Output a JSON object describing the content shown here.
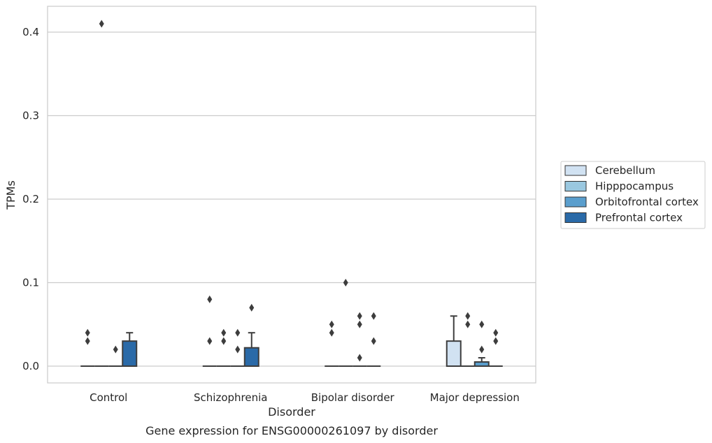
{
  "caption": "Gene expression for ENSG00000261097 by disorder",
  "chart_data": {
    "type": "box",
    "xlabel": "Disorder",
    "ylabel": "TPMs",
    "ylim": [
      -0.02,
      0.43
    ],
    "yticks": [
      "0.0",
      "0.1",
      "0.2",
      "0.3",
      "0.4"
    ],
    "grid": "horizontal",
    "legend_position": "right",
    "categories": [
      "Control",
      "Schizophrenia",
      "Bipolar disorder",
      "Major depression"
    ],
    "series": [
      {
        "name": "Cerebellum",
        "color": "#d1e2f2",
        "boxes": [
          {
            "q1": 0,
            "median": 0,
            "q3": 0,
            "whislo": 0,
            "whishi": 0,
            "fliers": [
              0.03,
              0.04
            ]
          },
          {
            "q1": 0,
            "median": 0,
            "q3": 0,
            "whislo": 0,
            "whishi": 0,
            "fliers": [
              0.03,
              0.08
            ]
          },
          {
            "q1": 0,
            "median": 0,
            "q3": 0,
            "whislo": 0,
            "whishi": 0,
            "fliers": [
              0.04,
              0.05
            ]
          },
          {
            "q1": 0,
            "median": 0,
            "q3": 0.03,
            "whislo": 0,
            "whishi": 0.06,
            "fliers": []
          }
        ]
      },
      {
        "name": "Hipppocampus",
        "color": "#9ac8e0",
        "boxes": [
          {
            "q1": 0,
            "median": 0,
            "q3": 0,
            "whislo": 0,
            "whishi": 0,
            "fliers": [
              0.41
            ]
          },
          {
            "q1": 0,
            "median": 0,
            "q3": 0,
            "whislo": 0,
            "whishi": 0,
            "fliers": [
              0.03,
              0.04
            ]
          },
          {
            "q1": 0,
            "median": 0,
            "q3": 0,
            "whislo": 0,
            "whishi": 0,
            "fliers": [
              0.1
            ]
          },
          {
            "q1": 0,
            "median": 0,
            "q3": 0,
            "whislo": 0,
            "whishi": 0,
            "fliers": [
              0.05,
              0.06
            ]
          }
        ]
      },
      {
        "name": "Orbitofrontal cortex",
        "color": "#5a9ecd",
        "boxes": [
          {
            "q1": 0,
            "median": 0,
            "q3": 0,
            "whislo": 0,
            "whishi": 0,
            "fliers": [
              0.02
            ]
          },
          {
            "q1": 0,
            "median": 0,
            "q3": 0,
            "whislo": 0,
            "whishi": 0,
            "fliers": [
              0.02,
              0.04
            ]
          },
          {
            "q1": 0,
            "median": 0,
            "q3": 0,
            "whislo": 0,
            "whishi": 0,
            "fliers": [
              0.01,
              0.05,
              0.06
            ]
          },
          {
            "q1": 0,
            "median": 0,
            "q3": 0.005,
            "whislo": 0,
            "whishi": 0.01,
            "fliers": [
              0.02,
              0.05
            ]
          }
        ]
      },
      {
        "name": "Prefrontal cortex",
        "color": "#2a6aa8",
        "boxes": [
          {
            "q1": 0,
            "median": 0,
            "q3": 0.03,
            "whislo": 0,
            "whishi": 0.04,
            "fliers": []
          },
          {
            "q1": 0,
            "median": 0,
            "q3": 0.022,
            "whislo": 0,
            "whishi": 0.04,
            "fliers": [
              0.07
            ]
          },
          {
            "q1": 0,
            "median": 0,
            "q3": 0,
            "whislo": 0,
            "whishi": 0,
            "fliers": [
              0.03,
              0.06
            ]
          },
          {
            "q1": 0,
            "median": 0,
            "q3": 0,
            "whislo": 0,
            "whishi": 0,
            "fliers": [
              0.03,
              0.04
            ]
          }
        ]
      }
    ]
  }
}
